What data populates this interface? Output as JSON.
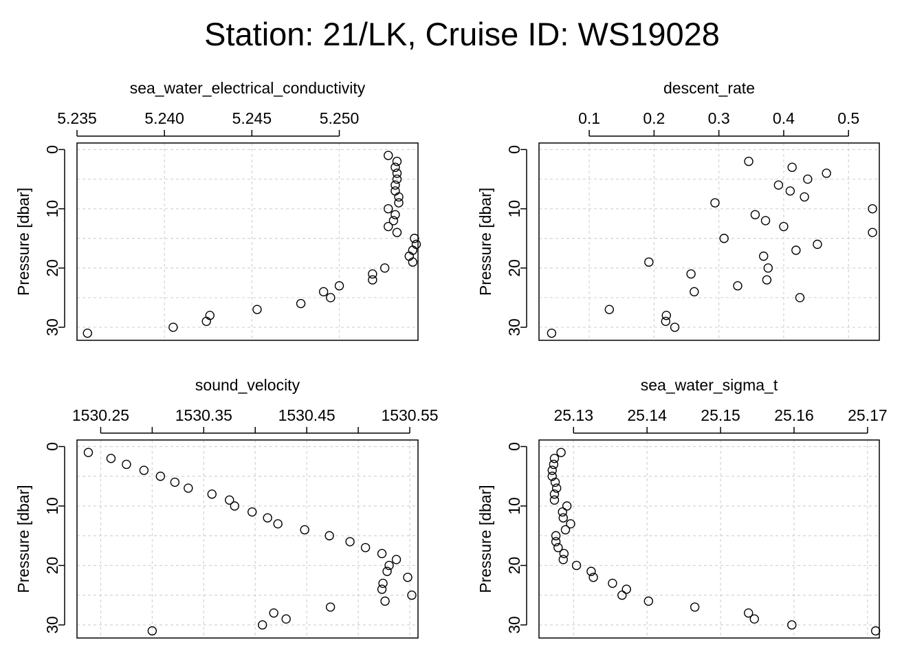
{
  "title": "Station: 21/LK, Cruise ID: WS19028",
  "chart_data": [
    {
      "type": "scatter",
      "title": "sea_water_electrical_conductivity",
      "ylabel": "Pressure [dbar]",
      "xlim": [
        5.235,
        5.2545
      ],
      "ylim": [
        -1.1,
        32.2
      ],
      "y_reversed": true,
      "x_axis_position": "top",
      "grid": true,
      "xticks": [
        5.235,
        5.24,
        5.245,
        5.25
      ],
      "xtick_labels": [
        "5.235",
        "5.240",
        "5.245",
        "5.250"
      ],
      "yticks": [
        0,
        10,
        20,
        30
      ],
      "ytick_labels": [
        "0",
        "10",
        "20",
        "30"
      ],
      "x": [
        5.2528,
        5.2533,
        5.2532,
        5.2533,
        5.2533,
        5.2532,
        5.2532,
        5.2534,
        5.2534,
        5.2528,
        5.2532,
        5.2531,
        5.2528,
        5.2533,
        5.2543,
        5.2544,
        5.2542,
        5.254,
        5.2542,
        5.2526,
        5.2519,
        5.2519,
        5.25,
        5.2491,
        5.2495,
        5.2478,
        5.2453,
        5.2426,
        5.2424,
        5.2405,
        5.2356
      ],
      "y": [
        1,
        2,
        3,
        4,
        5,
        6,
        7,
        8,
        9,
        10,
        11,
        12,
        13,
        14,
        15,
        16,
        17,
        18,
        19,
        20,
        21,
        22,
        23,
        24,
        25,
        26,
        27,
        28,
        29,
        30,
        31
      ]
    },
    {
      "type": "scatter",
      "title": "descent_rate",
      "ylabel": "Pressure [dbar]",
      "xlim": [
        0.0225,
        0.5475
      ],
      "ylim": [
        -1.1,
        32.2
      ],
      "y_reversed": true,
      "x_axis_position": "top",
      "grid": true,
      "xticks": [
        0.1,
        0.2,
        0.3,
        0.4,
        0.5
      ],
      "xtick_labels": [
        "0.1",
        "0.2",
        "0.3",
        "0.4",
        "0.5"
      ],
      "yticks": [
        0,
        10,
        20,
        30
      ],
      "ytick_labels": [
        "0",
        "10",
        "20",
        "30"
      ],
      "x": [
        0.346,
        0.413,
        0.466,
        0.437,
        0.392,
        0.41,
        0.432,
        0.294,
        0.537,
        0.356,
        0.372,
        0.4,
        0.537,
        0.308,
        0.452,
        0.369,
        0.419,
        0.376,
        0.192,
        0.257,
        0.374,
        0.262,
        0.329,
        0.425,
        0.131,
        0.219,
        0.218,
        0.232,
        0.042
      ],
      "y": [
        2,
        3,
        4,
        5,
        6,
        7,
        8,
        9,
        10,
        11,
        12,
        13,
        14,
        15,
        16,
        18,
        17,
        20,
        19,
        21,
        22,
        24,
        23,
        25,
        27,
        28,
        29,
        30,
        31
      ]
    },
    {
      "type": "scatter",
      "title": "sound_velocity",
      "ylabel": "Pressure [dbar]",
      "xlim": [
        1530.227,
        1530.558
      ],
      "ylim": [
        -1.1,
        32.2
      ],
      "y_reversed": true,
      "x_axis_position": "top",
      "grid": true,
      "xticks": [
        1530.25,
        1530.3,
        1530.35,
        1530.4,
        1530.45,
        1530.5,
        1530.55
      ],
      "xtick_labels": [
        "1530.25",
        "",
        "1530.35",
        "",
        "1530.45",
        "",
        "1530.55"
      ],
      "yticks": [
        0,
        10,
        20,
        30
      ],
      "ytick_labels": [
        "0",
        "10",
        "20",
        "30"
      ],
      "x": [
        1530.238,
        1530.26,
        1530.275,
        1530.292,
        1530.308,
        1530.322,
        1530.335,
        1530.358,
        1530.375,
        1530.38,
        1530.397,
        1530.412,
        1530.422,
        1530.448,
        1530.472,
        1530.492,
        1530.507,
        1530.523,
        1530.537,
        1530.53,
        1530.528,
        1530.548,
        1530.524,
        1530.523,
        1530.552,
        1530.526,
        1530.473,
        1530.418,
        1530.43,
        1530.407,
        1530.3
      ],
      "y": [
        1,
        2,
        3,
        4,
        5,
        6,
        7,
        8,
        9,
        10,
        11,
        12,
        13,
        14,
        15,
        16,
        17,
        18,
        19,
        20,
        21,
        22,
        23,
        24,
        25,
        26,
        27,
        28,
        29,
        30,
        31
      ]
    },
    {
      "type": "scatter",
      "title": "sea_water_sigma_t",
      "ylabel": "Pressure [dbar]",
      "xlim": [
        25.1253,
        25.1716
      ],
      "ylim": [
        -1.1,
        32.2
      ],
      "y_reversed": true,
      "x_axis_position": "top",
      "grid": true,
      "xticks": [
        25.13,
        25.14,
        25.15,
        25.16,
        25.17
      ],
      "xtick_labels": [
        "25.13",
        "25.14",
        "25.15",
        "25.16",
        "25.17"
      ],
      "yticks": [
        0,
        10,
        20,
        30
      ],
      "ytick_labels": [
        "0",
        "10",
        "20",
        "30"
      ],
      "x": [
        25.1283,
        25.1274,
        25.1273,
        25.1271,
        25.1271,
        25.1275,
        25.1277,
        25.1274,
        25.1274,
        25.1291,
        25.1285,
        25.1286,
        25.1296,
        25.1289,
        25.1276,
        25.1276,
        25.1279,
        25.1287,
        25.1286,
        25.1304,
        25.1324,
        25.1327,
        25.1353,
        25.1372,
        25.1366,
        25.1402,
        25.1465,
        25.1538,
        25.1546,
        25.1597,
        25.1711
      ],
      "y": [
        1,
        2,
        3,
        4,
        5,
        6,
        7,
        8,
        9,
        10,
        11,
        12,
        13,
        14,
        15,
        16,
        17,
        18,
        19,
        20,
        21,
        22,
        23,
        24,
        25,
        26,
        27,
        28,
        29,
        30,
        31
      ]
    }
  ]
}
